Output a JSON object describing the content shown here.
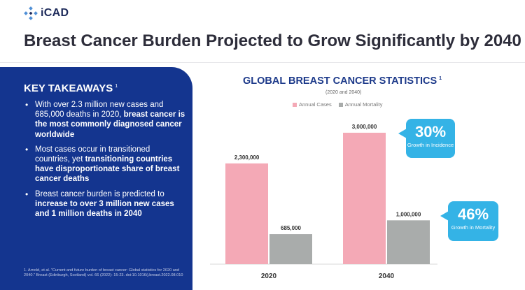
{
  "brand": {
    "logo_text": "iCAD"
  },
  "page_title": "Breast Cancer Burden Projected to Grow Significantly by 2040",
  "key_takeaways": {
    "heading": "KEY TAKEAWAYS",
    "heading_ref": "1",
    "bullets": [
      {
        "normal": "With over 2.3 million new cases and 685,000 deaths in 2020, ",
        "bold": "breast cancer is the most commonly diagnosed cancer worldwide",
        "after": ""
      },
      {
        "normal": "Most cases occur in transitioned countries, yet ",
        "bold": "transitioning countries have disproportionate share of breast cancer deaths",
        "after": ""
      },
      {
        "normal": "Breast cancer burden is predicted to ",
        "bold": "increase to over 3 million new cases and 1 million deaths in 2040",
        "after": ""
      }
    ],
    "footnote": "1. Arnold, et al. \"Current and future burden of breast cancer: Global statistics for 2020 and 2040.\" Breast (Edinburgh, Scotland) vol. 66 (2022): 15-23. doi:10.1016/j.breast.2022.08.010"
  },
  "chart_data": {
    "type": "bar",
    "title": "GLOBAL BREAST CANCER STATISTICS",
    "title_ref": "1",
    "subtitle": "(2020 and 2040)",
    "categories": [
      "2020",
      "2040"
    ],
    "series": [
      {
        "name": "Annual Cases",
        "values": [
          2300000,
          3000000
        ],
        "labels": [
          "2,300,000",
          "3,000,000"
        ],
        "color": "#f4a9b6"
      },
      {
        "name": "Annual Mortality",
        "values": [
          685000,
          1000000
        ],
        "labels": [
          "685,000",
          "1,000,000"
        ],
        "color": "#a9acab"
      }
    ],
    "ylim": [
      0,
      3350000
    ],
    "grid": false,
    "legend": "top",
    "annotations": [
      {
        "value": "30%",
        "text": "Growth in Incidence",
        "color": "#34b3e6"
      },
      {
        "value": "46%",
        "text": "Growth in Mortality",
        "color": "#34b3e6"
      }
    ]
  }
}
